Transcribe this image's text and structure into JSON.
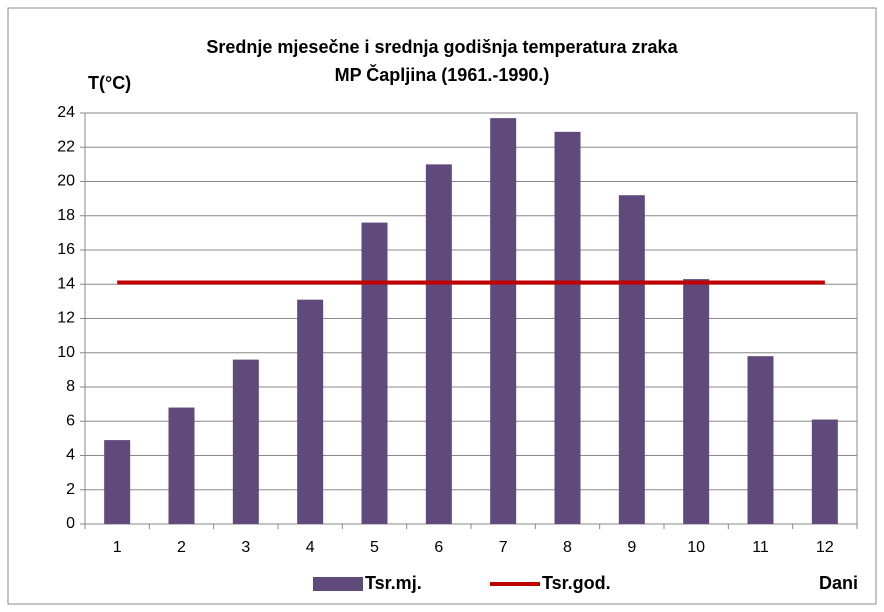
{
  "chart_data": {
    "type": "bar",
    "title": [
      "Srednje  mjesečne i srednja godišnja temperatura zraka",
      "MP Čapljina (1961.-1990.)"
    ],
    "y_label": "T(°C)",
    "x_label": "Dani",
    "categories": [
      "1",
      "2",
      "3",
      "4",
      "5",
      "6",
      "7",
      "8",
      "9",
      "10",
      "11",
      "12"
    ],
    "series": [
      {
        "name": "Tsr.mj.",
        "type": "bar",
        "color": "#604a7b",
        "values": [
          4.9,
          6.8,
          9.6,
          13.1,
          17.6,
          21.0,
          23.7,
          22.9,
          19.2,
          14.3,
          9.8,
          6.1
        ]
      },
      {
        "name": "Tsr.god.",
        "type": "line",
        "color": "#c00000",
        "values": [
          14.1,
          14.1,
          14.1,
          14.1,
          14.1,
          14.1,
          14.1,
          14.1,
          14.1,
          14.1,
          14.1,
          14.1
        ]
      }
    ],
    "ylim": [
      0,
      24
    ],
    "yticks": [
      0,
      2,
      4,
      6,
      8,
      10,
      12,
      14,
      16,
      18,
      20,
      22,
      24
    ],
    "grid": true,
    "legend": "bottom"
  }
}
